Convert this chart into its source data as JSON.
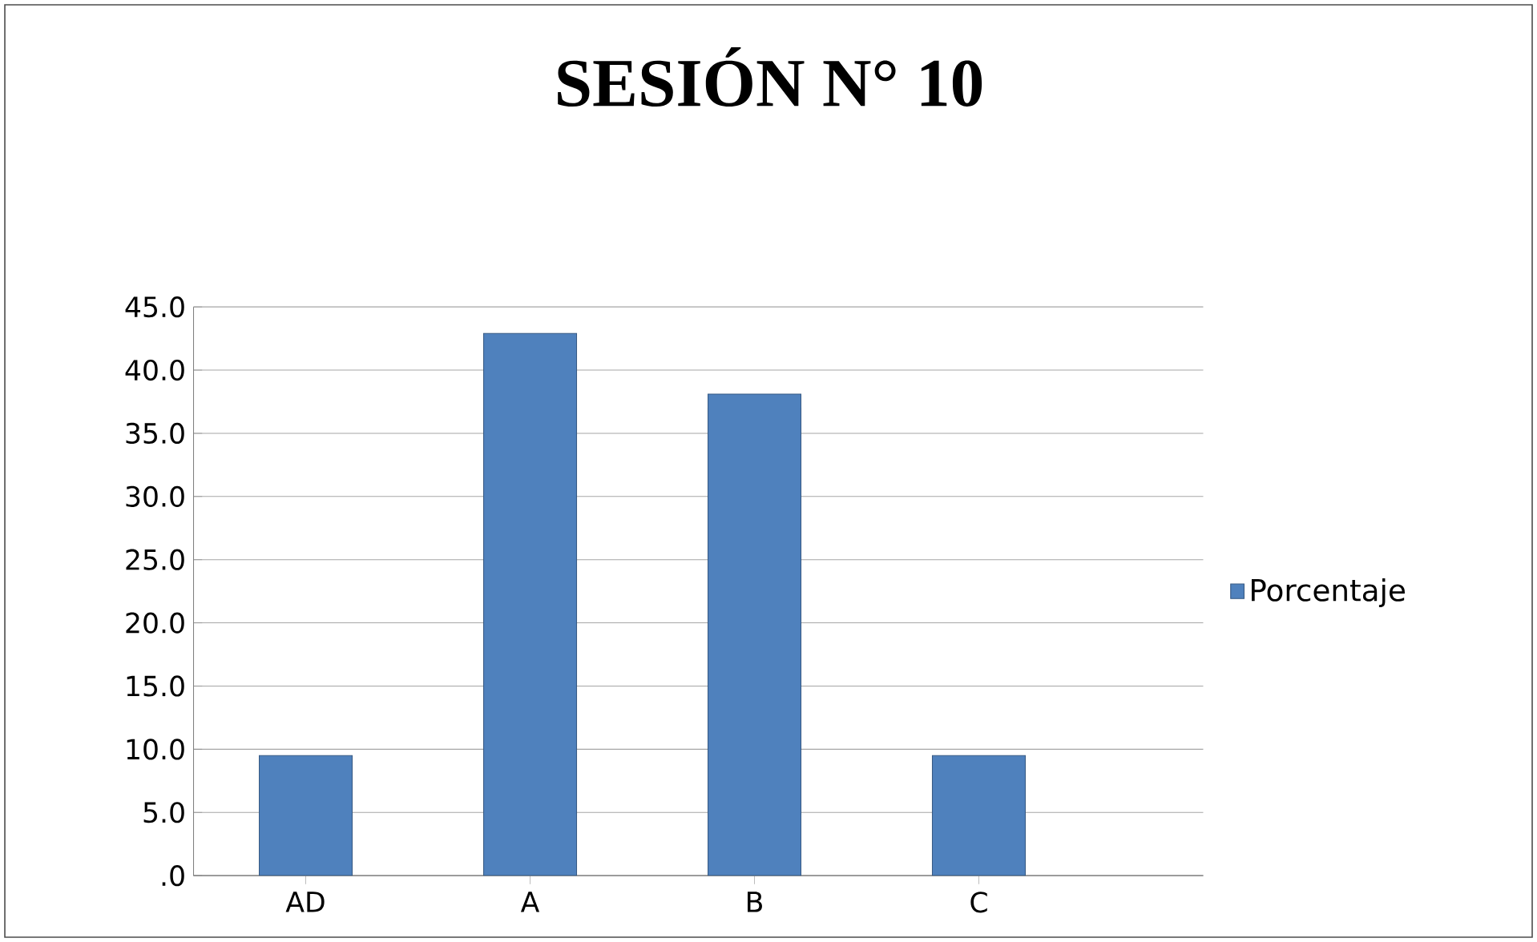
{
  "chart_data": {
    "type": "bar",
    "title": "SESIÓN N° 10",
    "categories": [
      "AD",
      "A",
      "B",
      "C"
    ],
    "series": [
      {
        "name": "Porcentaje",
        "color": "#4f81bd",
        "values": [
          9.5,
          42.9,
          38.1,
          9.5
        ]
      }
    ],
    "ylim": [
      0,
      45
    ],
    "yticks": [
      {
        "value": 0,
        "label": ".0"
      },
      {
        "value": 5,
        "label": "5.0"
      },
      {
        "value": 10,
        "label": "10.0"
      },
      {
        "value": 15,
        "label": "15.0"
      },
      {
        "value": 20,
        "label": "20.0"
      },
      {
        "value": 25,
        "label": "25.0"
      },
      {
        "value": 30,
        "label": "30.0"
      },
      {
        "value": 35,
        "label": "35.0"
      },
      {
        "value": 40,
        "label": "40.0"
      },
      {
        "value": 45,
        "label": "45.0"
      }
    ],
    "grid": "y",
    "legend": "right"
  }
}
